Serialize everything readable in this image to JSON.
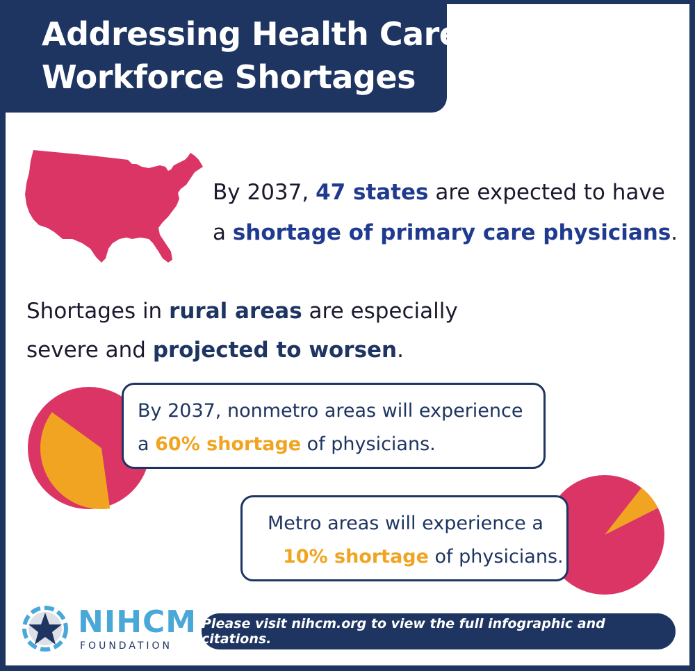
{
  "title": {
    "line1": "Addressing Health Care",
    "line2": "Workforce Shortages"
  },
  "states_fact": {
    "prefix": "By 2037, ",
    "highlight1": "47 states",
    "middle": " are expected to have",
    "line2_prefix": "a ",
    "highlight2": "shortage of primary care physicians",
    "suffix": "."
  },
  "rural_fact": {
    "prefix": "Shortages in ",
    "highlight1": "rural areas",
    "middle": " are especially",
    "line2_prefix": "severe and ",
    "highlight2": "projected to worsen",
    "suffix": "."
  },
  "nonmetro_callout": {
    "line1": "By 2037, nonmetro areas will experience",
    "line2_prefix": "a ",
    "highlight": "60% shortage",
    "line2_suffix": " of physicians.",
    "shortage_fraction": 0.6
  },
  "metro_callout": {
    "line1": "Metro areas will experience a",
    "highlight": "10% shortage",
    "line2_suffix": " of physicians.",
    "shortage_fraction": 0.1
  },
  "colors": {
    "navy": "#1e3461",
    "pink": "#db3566",
    "orange": "#f0a422",
    "blue_text": "#1f3a8f",
    "logo_blue": "#4aa8d8"
  },
  "logo": {
    "name": "NIHCM",
    "subtitle": "FOUNDATION",
    "icon": "star-people-icon"
  },
  "footer": {
    "text": "Please visit nihcm.org to view the full infographic and citations."
  }
}
